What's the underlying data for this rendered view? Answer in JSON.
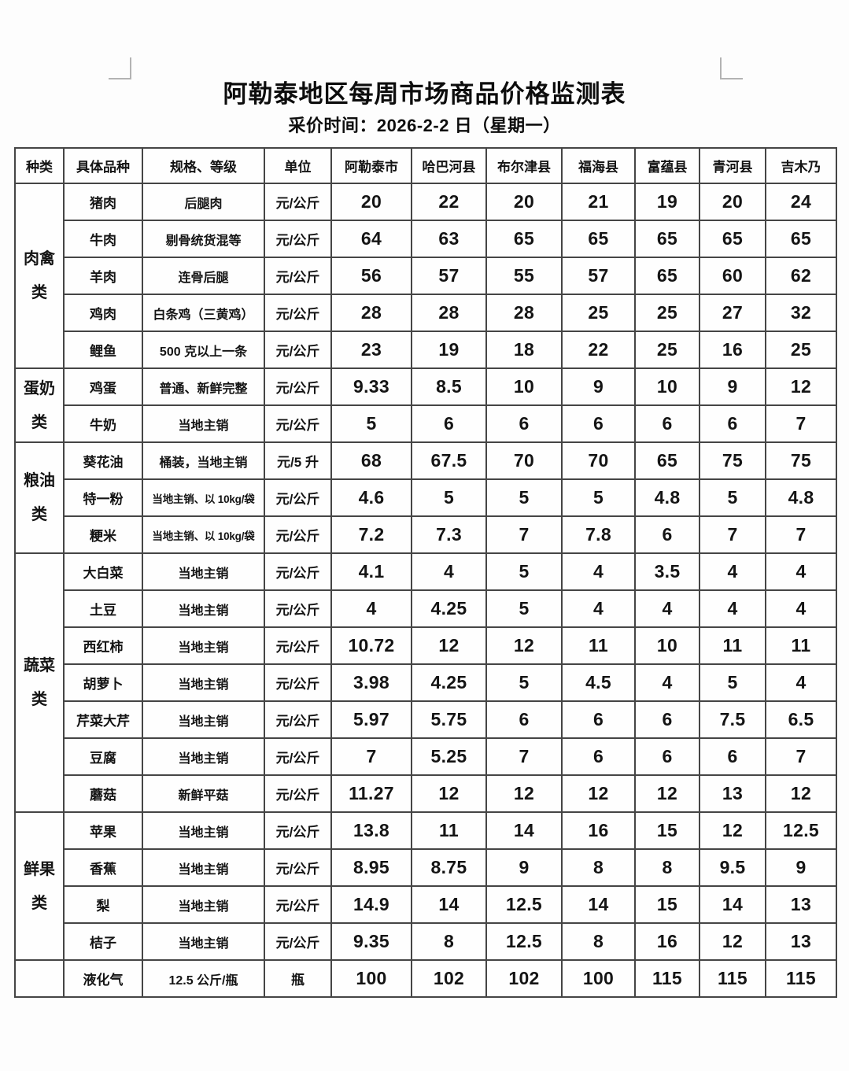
{
  "page": {
    "title": "阿勒泰地区每周市场商品价格监测表",
    "subtitle": "采价时间：2026-2-2 日（星期一）"
  },
  "table": {
    "headers": [
      "种类",
      "具体品种",
      "规格、等级",
      "单位",
      "阿勒泰市",
      "哈巴河县",
      "布尔津县",
      "福海县",
      "富蕴县",
      "青河县",
      "吉木乃"
    ],
    "groups": [
      {
        "category": "肉禽类",
        "lines": [
          "肉禽",
          "类"
        ],
        "rows": [
          {
            "item": "猪肉",
            "spec": "后腿肉",
            "unit": "元/公斤",
            "prices": [
              "20",
              "22",
              "20",
              "21",
              "19",
              "20",
              "24"
            ]
          },
          {
            "item": "牛肉",
            "spec": "剔骨统货混等",
            "unit": "元/公斤",
            "prices": [
              "64",
              "63",
              "65",
              "65",
              "65",
              "65",
              "65"
            ]
          },
          {
            "item": "羊肉",
            "spec": "连骨后腿",
            "unit": "元/公斤",
            "prices": [
              "56",
              "57",
              "55",
              "57",
              "65",
              "60",
              "62"
            ]
          },
          {
            "item": "鸡肉",
            "spec": "白条鸡（三黄鸡）",
            "unit": "元/公斤",
            "prices": [
              "28",
              "28",
              "28",
              "25",
              "25",
              "27",
              "32"
            ]
          },
          {
            "item": "鲤鱼",
            "spec": "500 克以上一条",
            "unit": "元/公斤",
            "prices": [
              "23",
              "19",
              "18",
              "22",
              "25",
              "16",
              "25"
            ]
          }
        ]
      },
      {
        "category": "蛋奶类",
        "lines": [
          "蛋奶",
          "类"
        ],
        "rows": [
          {
            "item": "鸡蛋",
            "spec": "普通、新鲜完整",
            "unit": "元/公斤",
            "prices": [
              "9.33",
              "8.5",
              "10",
              "9",
              "10",
              "9",
              "12"
            ]
          },
          {
            "item": "牛奶",
            "spec": "当地主销",
            "unit": "元/公斤",
            "prices": [
              "5",
              "6",
              "6",
              "6",
              "6",
              "6",
              "7"
            ]
          }
        ]
      },
      {
        "category": "粮油类",
        "lines": [
          "粮油",
          "类"
        ],
        "rows": [
          {
            "item": "葵花油",
            "spec": "桶装，当地主销",
            "unit": "元/5 升",
            "prices": [
              "68",
              "67.5",
              "70",
              "70",
              "65",
              "75",
              "75"
            ]
          },
          {
            "item": "特一粉",
            "spec": "当地主销、以 10kg/袋",
            "unit": "元/公斤",
            "prices": [
              "4.6",
              "5",
              "5",
              "5",
              "4.8",
              "5",
              "4.8"
            ]
          },
          {
            "item": "粳米",
            "spec": "当地主销、以 10kg/袋",
            "unit": "元/公斤",
            "prices": [
              "7.2",
              "7.3",
              "7",
              "7.8",
              "6",
              "7",
              "7"
            ]
          }
        ]
      },
      {
        "category": "蔬菜类",
        "lines": [
          "蔬菜",
          "类"
        ],
        "rows": [
          {
            "item": "大白菜",
            "spec": "当地主销",
            "unit": "元/公斤",
            "prices": [
              "4.1",
              "4",
              "5",
              "4",
              "3.5",
              "4",
              "4"
            ]
          },
          {
            "item": "土豆",
            "spec": "当地主销",
            "unit": "元/公斤",
            "prices": [
              "4",
              "4.25",
              "5",
              "4",
              "4",
              "4",
              "4"
            ]
          },
          {
            "item": "西红柿",
            "spec": "当地主销",
            "unit": "元/公斤",
            "prices": [
              "10.72",
              "12",
              "12",
              "11",
              "10",
              "11",
              "11"
            ]
          },
          {
            "item": "胡萝卜",
            "spec": "当地主销",
            "unit": "元/公斤",
            "prices": [
              "3.98",
              "4.25",
              "5",
              "4.5",
              "4",
              "5",
              "4"
            ]
          },
          {
            "item": "芹菜大芹",
            "spec": "当地主销",
            "unit": "元/公斤",
            "prices": [
              "5.97",
              "5.75",
              "6",
              "6",
              "6",
              "7.5",
              "6.5"
            ]
          },
          {
            "item": "豆腐",
            "spec": "当地主销",
            "unit": "元/公斤",
            "prices": [
              "7",
              "5.25",
              "7",
              "6",
              "6",
              "6",
              "7"
            ]
          },
          {
            "item": "蘑菇",
            "spec": "新鲜平菇",
            "unit": "元/公斤",
            "prices": [
              "11.27",
              "12",
              "12",
              "12",
              "12",
              "13",
              "12"
            ]
          }
        ]
      },
      {
        "category": "鲜果类",
        "lines": [
          "鲜果",
          "类"
        ],
        "rows": [
          {
            "item": "苹果",
            "spec": "当地主销",
            "unit": "元/公斤",
            "prices": [
              "13.8",
              "11",
              "14",
              "16",
              "15",
              "12",
              "12.5"
            ]
          },
          {
            "item": "香蕉",
            "spec": "当地主销",
            "unit": "元/公斤",
            "prices": [
              "8.95",
              "8.75",
              "9",
              "8",
              "8",
              "9.5",
              "9"
            ]
          },
          {
            "item": "梨",
            "spec": "当地主销",
            "unit": "元/公斤",
            "prices": [
              "14.9",
              "14",
              "12.5",
              "14",
              "15",
              "14",
              "13"
            ]
          },
          {
            "item": "桔子",
            "spec": "当地主销",
            "unit": "元/公斤",
            "prices": [
              "9.35",
              "8",
              "12.5",
              "8",
              "16",
              "12",
              "13"
            ]
          }
        ]
      },
      {
        "category": "",
        "lines": [],
        "rows": [
          {
            "item": "液化气",
            "spec": "12.5 公斤/瓶",
            "unit": "瓶",
            "prices": [
              "100",
              "102",
              "102",
              "100",
              "115",
              "115",
              "115"
            ]
          }
        ]
      }
    ]
  }
}
